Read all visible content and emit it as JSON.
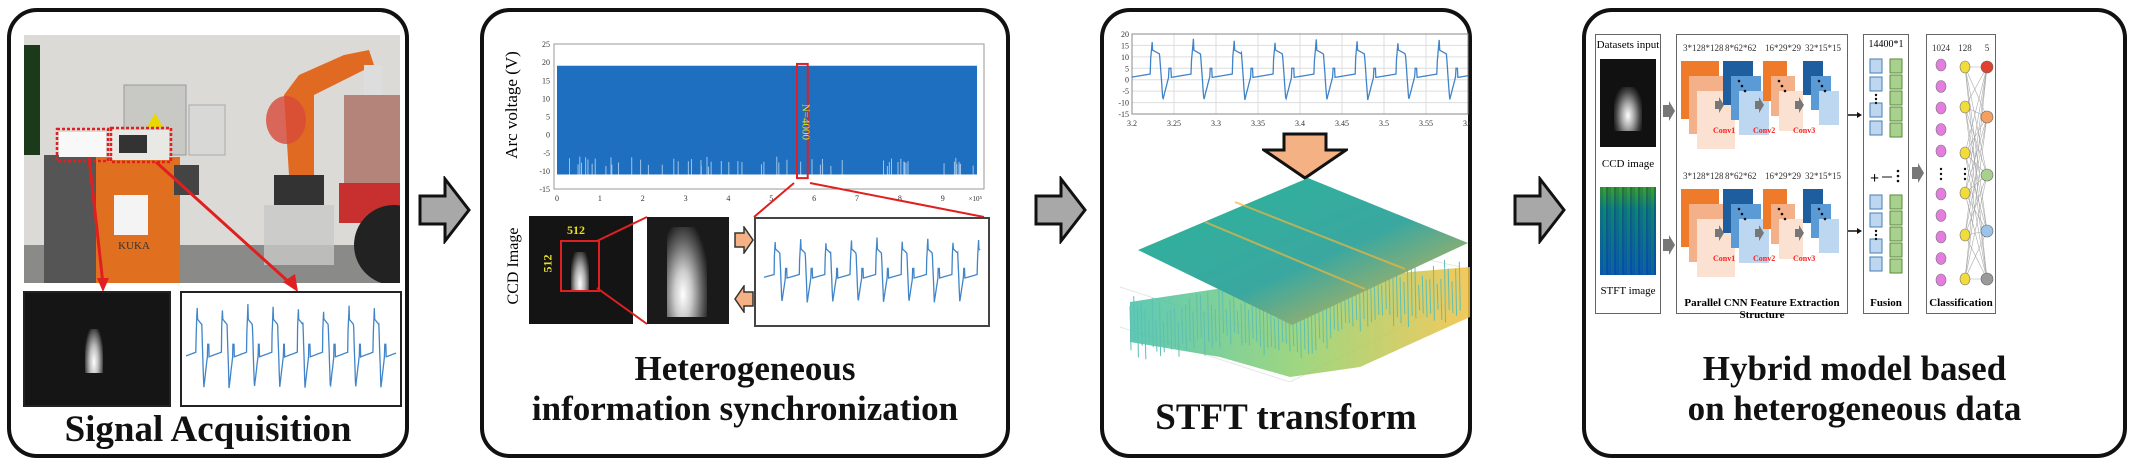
{
  "panels": [
    {
      "title": "Signal Acquisition",
      "photo": {
        "description": "welding robot cell with KUKA controller",
        "controller_label": "KUKA"
      },
      "ccd_thumb": "arc image",
      "waveform_thumb": "arc voltage waveform"
    },
    {
      "title_line1": "Heterogeneous",
      "title_line2": "information synchronization",
      "voltage_chart": {
        "ylabel": "Arc voltage (V)",
        "yticks": [
          "25",
          "20",
          "15",
          "10",
          "5",
          "0",
          "-5",
          "-10",
          "-15"
        ],
        "xticks": [
          "0",
          "1",
          "2",
          "3",
          "4",
          "5",
          "6",
          "7",
          "8",
          "9"
        ],
        "x_multiplier": "×10⁵",
        "window_label": "N=4000"
      },
      "ccd": {
        "label": "CCD Image",
        "width_label": "512",
        "height_label": "512"
      }
    },
    {
      "title": "STFT transform",
      "signal_chart": {
        "yticks": [
          "20",
          "15",
          "10",
          "5",
          "0",
          "-5",
          "-10",
          "-15"
        ],
        "xticks": [
          "3.2",
          "3.25",
          "3.3",
          "3.35",
          "3.4",
          "3.45",
          "3.5",
          "3.55",
          "3.6"
        ]
      },
      "surface": "3D STFT spectrogram surface"
    },
    {
      "title_line1": "Hybrid model based",
      "title_line2": "on heterogeneous data",
      "inputs": {
        "header": "Datasets input",
        "ccd_label": "CCD image",
        "stft_label": "STFT image"
      },
      "cnn": {
        "shapes": [
          "3*128*128",
          "8*62*62",
          "16*29*29",
          "32*15*15"
        ],
        "conv_labels": [
          "Conv1",
          "Conv2",
          "Conv3"
        ],
        "caption": "Parallel CNN Feature Extraction Structure"
      },
      "fusion": {
        "header": "14400*1",
        "caption": "Fusion",
        "op": "+"
      },
      "classification": {
        "layers": [
          "1024",
          "128",
          "5"
        ],
        "caption": "Classification"
      }
    }
  ],
  "colors": {
    "border": "#111111",
    "arrow_fill": "#a8a8a8",
    "signal_blue": "#1f6fc0",
    "highlight_red": "#e02020",
    "label_yellow": "#e8e020",
    "orange_dark": "#ee7a2a",
    "orange_mid": "#f4b088",
    "orange_light": "#fbe1d1",
    "blue_dark": "#1f5e9e",
    "blue_mid": "#5b9bd5",
    "blue_light": "#bcd7ef",
    "fusion_green": "#a9d18e",
    "node_pink": "#e57ce0",
    "node_yellow": "#f2dc3a",
    "conv_red": "#ff2020",
    "arrow_peach": "#f4b183"
  }
}
